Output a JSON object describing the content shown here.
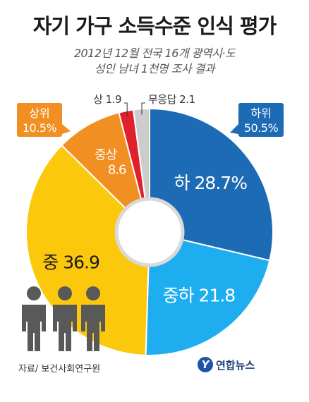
{
  "title": "자기 가구 소득수준 인식 평가",
  "subtitle_line1": "2012년 12월 전국 16개 광역시·도",
  "subtitle_line2": "성인 남녀 1천명 조사 결과",
  "source": "자료/ 보건사회연구원",
  "logo_text": "연합뉴스",
  "logo_mark": "Y",
  "colors": {
    "하": "#1d6ab5",
    "중하": "#1eaef0",
    "중": "#fcc80b",
    "중상": "#f28f23",
    "상": "#e0202a",
    "무응답": "#cccccc",
    "callout_upper": "#f28f23",
    "callout_lower": "#1d6ab5",
    "people": "#595959"
  },
  "chart_data": {
    "type": "pie",
    "donut": true,
    "slices": [
      {
        "label": "하",
        "value": 28.7,
        "display": "하 28.7%"
      },
      {
        "label": "중하",
        "value": 21.8,
        "display": "중하 21.8"
      },
      {
        "label": "중",
        "value": 36.9,
        "display": "중 36.9"
      },
      {
        "label": "중상",
        "value": 8.6,
        "display_name": "중상",
        "display_value": "8.6"
      },
      {
        "label": "상",
        "value": 1.9,
        "display": "상 1.9"
      },
      {
        "label": "무응답",
        "value": 2.1,
        "display": "무응답 2.1"
      }
    ],
    "callouts": [
      {
        "group": "상위",
        "value_text": "10.5%"
      },
      {
        "group": "하위",
        "value_text": "50.5%"
      }
    ]
  }
}
